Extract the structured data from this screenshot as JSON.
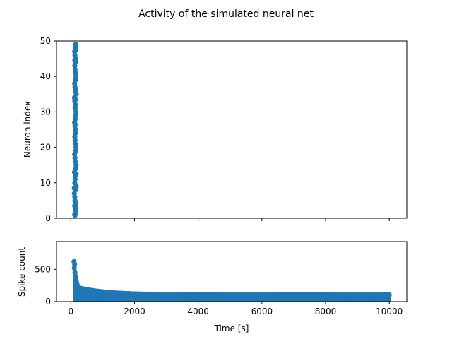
{
  "figure": {
    "title": "Activity of the simulated neural net",
    "marker_color": "#1f77b4"
  },
  "chart_data": [
    {
      "type": "scatter",
      "name": "raster",
      "ylabel": "Neuron index",
      "xlabel": "",
      "xlim": [
        -450,
        10550
      ],
      "ylim": [
        0,
        50
      ],
      "x_ticks": [
        0,
        2000,
        4000,
        6000,
        8000,
        10000
      ],
      "x_tick_labels_visible": false,
      "y_ticks": [
        0,
        10,
        20,
        30,
        40,
        50
      ],
      "y_tick_labels": [
        "0",
        "10",
        "20",
        "30",
        "40",
        "50"
      ],
      "grid": false,
      "points": {
        "x": [
          120,
          140,
          160,
          130,
          110,
          150,
          170,
          125,
          135,
          145,
          115,
          155,
          165,
          140,
          130,
          120,
          150,
          160,
          140,
          135,
          125,
          145,
          155,
          130,
          120,
          140,
          150,
          160,
          135,
          145,
          125,
          115,
          170,
          140,
          130,
          120,
          150,
          160,
          140,
          135,
          125,
          145,
          155,
          130,
          120,
          140,
          150,
          160,
          135,
          145,
          125,
          130,
          140,
          150,
          120,
          160,
          110,
          170,
          135,
          145,
          140,
          125,
          155
        ],
        "y": [
          1,
          2,
          3,
          5,
          7,
          8,
          9,
          10,
          11,
          12,
          13,
          14,
          15,
          16,
          17,
          18,
          19,
          20,
          21,
          22,
          23,
          24,
          25,
          26,
          27,
          28,
          29,
          30,
          31,
          32,
          33,
          34,
          35,
          36,
          37,
          38,
          39,
          40,
          41,
          42,
          43,
          44,
          45,
          46,
          47,
          48,
          49,
          49,
          48,
          4,
          6,
          0.8,
          1.2,
          2.5,
          3.5,
          4.5,
          8.5,
          12.5,
          26.5,
          33.5,
          36.5,
          44.5,
          47.5
        ]
      }
    },
    {
      "type": "scatter",
      "name": "spike-count",
      "ylabel": "Spike count",
      "xlabel": "Time [s]",
      "xlim": [
        -450,
        10550
      ],
      "ylim": [
        0,
        930
      ],
      "x_ticks": [
        0,
        2000,
        4000,
        6000,
        8000,
        10000
      ],
      "x_tick_labels": [
        "0",
        "2000",
        "4000",
        "6000",
        "8000",
        "10000"
      ],
      "y_ticks": [
        0,
        500
      ],
      "y_tick_labels": [
        "0",
        "500"
      ],
      "grid": false,
      "spike_decay": {
        "baseline": 105,
        "amplitude": 120,
        "tau": 900,
        "start": 150,
        "end": 10000,
        "step": 50
      },
      "peaks": {
        "x": [
          100,
          120,
          140,
          160,
          180,
          200,
          150,
          130,
          170,
          110
        ],
        "y": [
          620,
          580,
          400,
          360,
          300,
          260,
          330,
          450,
          280,
          520
        ]
      }
    }
  ]
}
